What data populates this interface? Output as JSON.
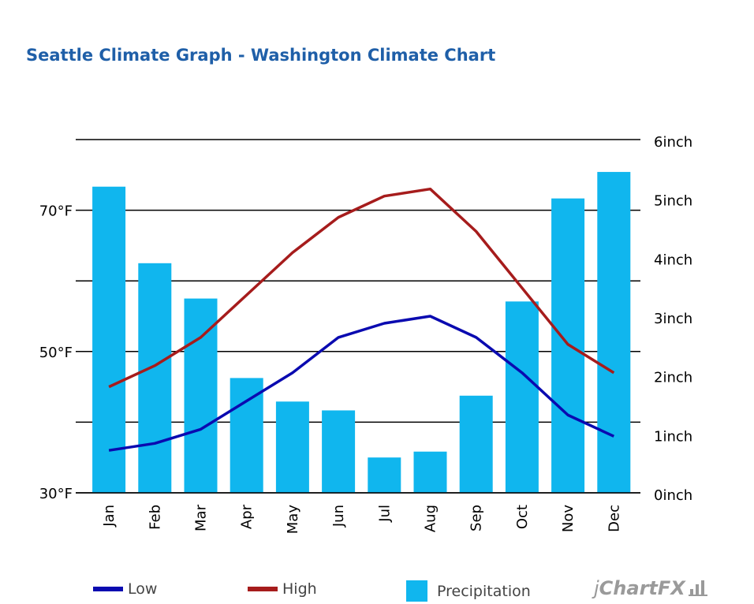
{
  "title": "Seattle Climate Graph - Washington Climate Chart",
  "chart_data": {
    "type": "bar+line",
    "categories": [
      "Jan",
      "Feb",
      "Mar",
      "Apr",
      "May",
      "Jun",
      "Jul",
      "Aug",
      "Sep",
      "Oct",
      "Nov",
      "Dec"
    ],
    "series": [
      {
        "name": "Low",
        "type": "line",
        "axis": "left",
        "color": "#0a0ab0",
        "values": [
          36,
          37,
          39,
          43,
          47,
          52,
          54,
          55,
          52,
          47,
          41,
          38
        ]
      },
      {
        "name": "High",
        "type": "line",
        "axis": "left",
        "color": "#a61c1c",
        "values": [
          45,
          48,
          52,
          58,
          64,
          69,
          72,
          73,
          67,
          59,
          51,
          47
        ]
      },
      {
        "name": "Precipitation",
        "type": "bar",
        "axis": "right",
        "color": "#10b6ee",
        "values": [
          5.2,
          3.9,
          3.3,
          1.95,
          1.55,
          1.4,
          0.6,
          0.7,
          1.65,
          3.25,
          5.0,
          5.45
        ]
      }
    ],
    "left_axis": {
      "min": 30,
      "max": 80,
      "ticks": [
        "30°F",
        "50°F",
        "70°F"
      ],
      "tick_values": [
        30,
        50,
        70
      ]
    },
    "right_axis": {
      "min": 0,
      "max": 6,
      "ticks": [
        "0inch",
        "1inch",
        "2inch",
        "3inch",
        "4inch",
        "5inch",
        "6inch"
      ],
      "tick_values": [
        0,
        1,
        2,
        3,
        4,
        5,
        6
      ]
    },
    "grid": true
  },
  "legend": {
    "low_label": "Low",
    "high_label": "High",
    "precip_label": "Precipitation"
  },
  "logo": {
    "prefix": "j",
    "name": "ChartFX"
  }
}
